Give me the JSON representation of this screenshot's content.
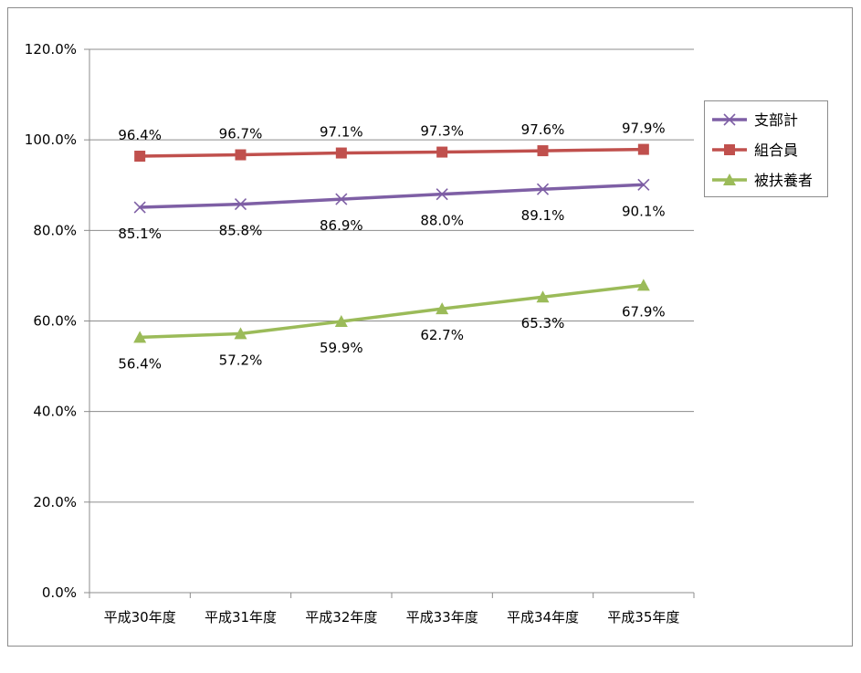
{
  "chart_data": {
    "type": "line",
    "categories": [
      "平成30年度",
      "平成31年度",
      "平成32年度",
      "平成33年度",
      "平成34年度",
      "平成35年度"
    ],
    "ylim": [
      0,
      120
    ],
    "yticks": [
      "0.0%",
      "20.0%",
      "40.0%",
      "60.0%",
      "80.0%",
      "100.0%",
      "120.0%"
    ],
    "grid": true,
    "legend": "right",
    "series": [
      {
        "name": "支部計",
        "values": [
          85.1,
          85.8,
          86.9,
          88.0,
          89.1,
          90.1
        ],
        "labels": [
          "85.1%",
          "85.8%",
          "86.9%",
          "88.0%",
          "89.1%",
          "90.1%"
        ],
        "color": "#7e5fa5",
        "marker": "x",
        "label_pos": "below"
      },
      {
        "name": "組合員",
        "values": [
          96.4,
          96.7,
          97.1,
          97.3,
          97.6,
          97.9
        ],
        "labels": [
          "96.4%",
          "96.7%",
          "97.1%",
          "97.3%",
          "97.6%",
          "97.9%"
        ],
        "color": "#c0504d",
        "marker": "square",
        "label_pos": "above"
      },
      {
        "name": "被扶養者",
        "values": [
          56.4,
          57.2,
          59.9,
          62.7,
          65.3,
          67.9
        ],
        "labels": [
          "56.4%",
          "57.2%",
          "59.9%",
          "62.7%",
          "65.3%",
          "67.9%"
        ],
        "color": "#9bbb59",
        "marker": "triangle",
        "label_pos": "below"
      }
    ]
  }
}
